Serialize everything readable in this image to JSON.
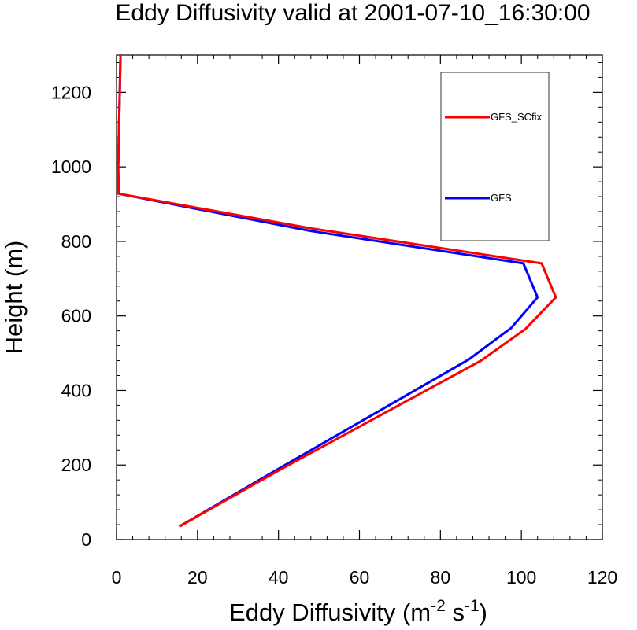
{
  "chart_data": {
    "type": "line",
    "title": "Eddy Diffusivity valid at 2001-07-10_16:30:00",
    "xlabel": {
      "base": "Eddy Diffusivity (m",
      "sup1": "-2",
      "mid": " s",
      "sup2": "-1",
      "end": ")"
    },
    "ylabel": "Height (m)",
    "xlim": [
      0,
      120
    ],
    "ylim": [
      0,
      1300
    ],
    "x_ticks": [
      0,
      20,
      40,
      60,
      80,
      100,
      120
    ],
    "y_ticks": [
      0,
      200,
      400,
      600,
      800,
      1000,
      1200
    ],
    "x_tick_labels": [
      "0",
      "20",
      "40",
      "60",
      "80",
      "100",
      "120"
    ],
    "y_tick_labels": [
      "0",
      "200",
      "400",
      "600",
      "800",
      "1000",
      "1200"
    ],
    "x_minor_step": 4,
    "y_minor_step": 40,
    "legend_position": "top-right",
    "series": [
      {
        "name": "GFS_SCfix",
        "color": "#ff0000",
        "points": [
          [
            15.5,
            35
          ],
          [
            40,
            185
          ],
          [
            90,
            480
          ],
          [
            101,
            565
          ],
          [
            108.5,
            650
          ],
          [
            105,
            741
          ],
          [
            48,
            835
          ],
          [
            0.5,
            928
          ],
          [
            0.4,
            1000
          ],
          [
            0.6,
            1100
          ],
          [
            0.8,
            1200
          ],
          [
            1,
            1300
          ]
        ]
      },
      {
        "name": "GFS",
        "color": "#0000ff",
        "points": [
          [
            15.5,
            35
          ],
          [
            40,
            190
          ],
          [
            87,
            483
          ],
          [
            97.5,
            568
          ],
          [
            104,
            650
          ],
          [
            100.5,
            741
          ],
          [
            48,
            828
          ],
          [
            0.5,
            928
          ],
          [
            0.4,
            1000
          ],
          [
            0.6,
            1100
          ],
          [
            0.8,
            1200
          ],
          [
            1,
            1300
          ]
        ]
      }
    ]
  }
}
